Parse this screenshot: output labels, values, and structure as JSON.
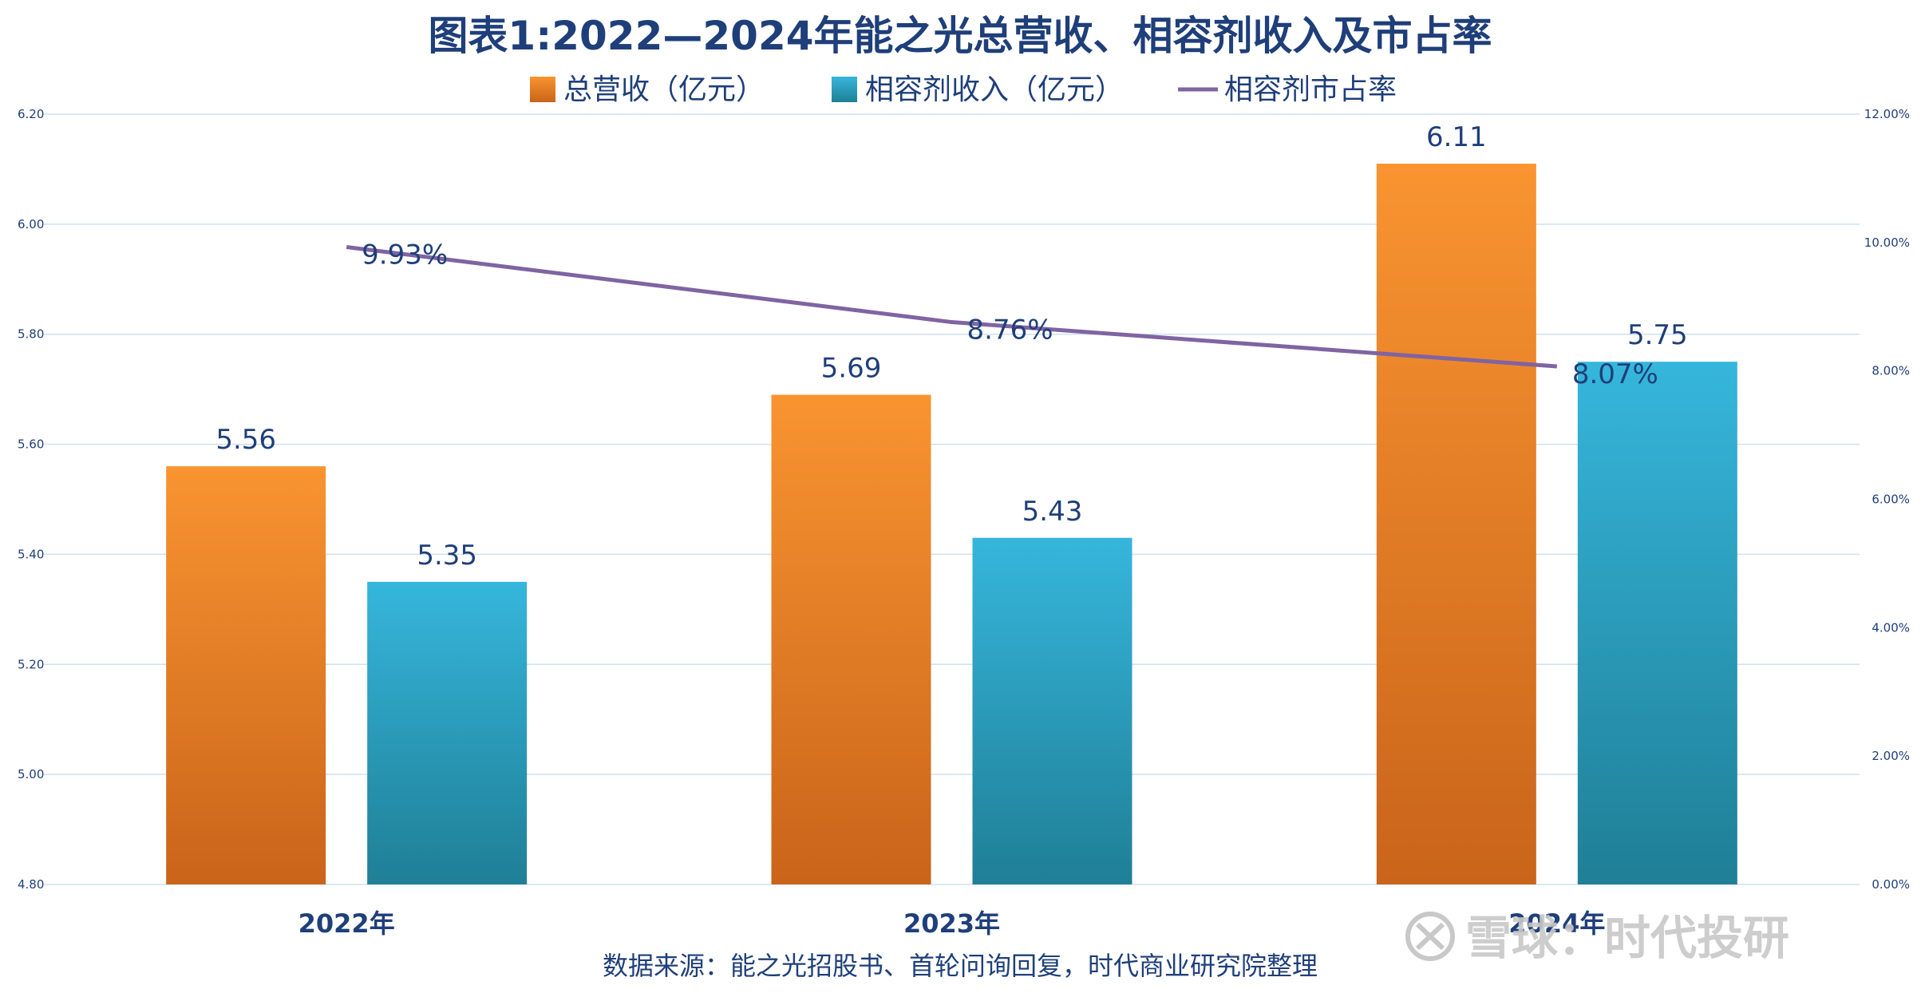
{
  "chart_data": {
    "type": "bar",
    "title": "图表1:2022—2024年能之光总营收、相容剂收入及市占率",
    "categories": [
      "2022年",
      "2023年",
      "2024年"
    ],
    "series": [
      {
        "name": "总营收（亿元）",
        "kind": "bar",
        "axis": "left",
        "values": [
          5.56,
          5.69,
          6.11
        ],
        "labels": [
          "5.56",
          "5.69",
          "6.11"
        ],
        "color_top": "#f99431",
        "color_bottom": "#c9641a"
      },
      {
        "name": "相容剂收入（亿元）",
        "kind": "bar",
        "axis": "left",
        "values": [
          5.35,
          5.43,
          5.75
        ],
        "labels": [
          "5.35",
          "5.43",
          "5.75"
        ],
        "color_top": "#36b6dc",
        "color_bottom": "#1f7f96"
      },
      {
        "name": "相容剂市占率",
        "kind": "line",
        "axis": "right",
        "values": [
          9.93,
          8.76,
          8.07
        ],
        "labels": [
          "9.93%",
          "8.76%",
          "8.07%"
        ],
        "color": "#8064a2"
      }
    ],
    "y_left": {
      "min": 4.8,
      "max": 6.2,
      "ticks": [
        "4.80",
        "5.00",
        "5.20",
        "5.40",
        "5.60",
        "5.80",
        "6.00",
        "6.20"
      ]
    },
    "y_right": {
      "min": 0,
      "max": 12,
      "ticks": [
        "0.00%",
        "2.00%",
        "4.00%",
        "6.00%",
        "8.00%",
        "10.00%",
        "12.00%"
      ]
    },
    "grid": true,
    "legend_position": "top"
  },
  "source_note": "数据来源：能之光招股书、首轮问询回复，时代商业研究院整理",
  "watermark": "雪球：时代投研",
  "colors": {
    "text": "#1f3f7a",
    "grid": "#cfe0f0"
  }
}
